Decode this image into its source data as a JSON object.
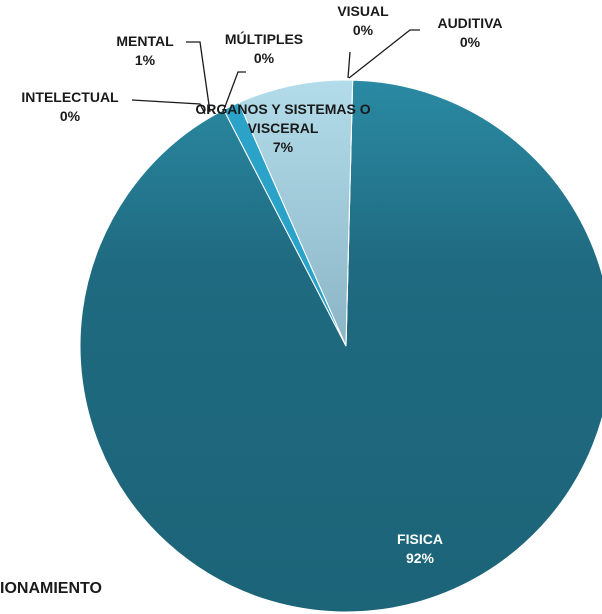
{
  "chart_data": {
    "type": "pie",
    "categories": [
      "AUDITIVA",
      "FISICA",
      "INTELECTUAL",
      "MENTAL",
      "MÚLTIPLES",
      "ORGANOS Y SISTEMAS O VISCERAL",
      "VISUAL"
    ],
    "values": [
      0,
      92,
      0,
      1,
      0,
      7,
      0
    ],
    "value_labels": [
      "0%",
      "92%",
      "0%",
      "1%",
      "0%",
      "7%",
      "0%"
    ],
    "colors": [
      "#e8eef2",
      "#1f6a80",
      "#3a8fb0",
      "#2ba3c9",
      "#7cc0d8",
      "#a6cfdf",
      "#c9d6de"
    ],
    "annotation": "IONAMIENTO"
  }
}
